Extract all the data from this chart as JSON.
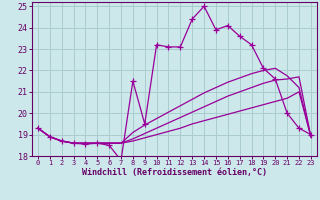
{
  "background_color": "#cce8ea",
  "grid_color": "#aaccce",
  "line_color": "#990099",
  "xlabel": "Windchill (Refroidissement éolien,°C)",
  "xlabel_color": "#660066",
  "tick_color": "#660066",
  "xlim": [
    -0.5,
    23.5
  ],
  "ylim": [
    18,
    25.2
  ],
  "yticks": [
    18,
    19,
    20,
    21,
    22,
    23,
    24,
    25
  ],
  "xticks": [
    0,
    1,
    2,
    3,
    4,
    5,
    6,
    7,
    8,
    9,
    10,
    11,
    12,
    13,
    14,
    15,
    16,
    17,
    18,
    19,
    20,
    21,
    22,
    23
  ],
  "line1_x": [
    0,
    1,
    2,
    3,
    4,
    5,
    6,
    7,
    8,
    9,
    10,
    11,
    12,
    13,
    14,
    15,
    16,
    17,
    18,
    19,
    20,
    21,
    22,
    23
  ],
  "line1_y": [
    19.3,
    18.9,
    18.7,
    18.6,
    18.55,
    18.6,
    18.5,
    17.8,
    21.5,
    19.5,
    23.2,
    23.1,
    23.1,
    24.4,
    25.0,
    23.9,
    24.1,
    23.6,
    23.2,
    22.1,
    21.6,
    20.0,
    19.3,
    19.0
  ],
  "line2_x": [
    0,
    1,
    2,
    3,
    4,
    5,
    6,
    7,
    8,
    9,
    10,
    11,
    12,
    13,
    14,
    15,
    16,
    17,
    18,
    19,
    20,
    21,
    22,
    23
  ],
  "line2_y": [
    19.3,
    18.9,
    18.7,
    18.6,
    18.6,
    18.6,
    18.6,
    18.6,
    18.7,
    18.85,
    19.0,
    19.15,
    19.3,
    19.5,
    19.65,
    19.8,
    19.95,
    20.1,
    20.25,
    20.4,
    20.55,
    20.7,
    21.0,
    18.9
  ],
  "line3_x": [
    0,
    1,
    2,
    3,
    4,
    5,
    6,
    7,
    8,
    9,
    10,
    11,
    12,
    13,
    14,
    15,
    16,
    17,
    18,
    19,
    20,
    21,
    22,
    23
  ],
  "line3_y": [
    19.3,
    18.9,
    18.7,
    18.6,
    18.6,
    18.6,
    18.6,
    18.6,
    18.8,
    19.05,
    19.3,
    19.55,
    19.8,
    20.05,
    20.3,
    20.55,
    20.8,
    21.0,
    21.2,
    21.4,
    21.55,
    21.6,
    21.7,
    18.9
  ],
  "line4_x": [
    0,
    1,
    2,
    3,
    4,
    5,
    6,
    7,
    8,
    9,
    10,
    11,
    12,
    13,
    14,
    15,
    16,
    17,
    18,
    19,
    20,
    21,
    22,
    23
  ],
  "line4_y": [
    19.3,
    18.9,
    18.7,
    18.6,
    18.6,
    18.6,
    18.6,
    18.6,
    19.1,
    19.45,
    19.75,
    20.05,
    20.35,
    20.65,
    20.95,
    21.2,
    21.45,
    21.65,
    21.85,
    22.0,
    22.1,
    21.75,
    21.2,
    18.9
  ]
}
